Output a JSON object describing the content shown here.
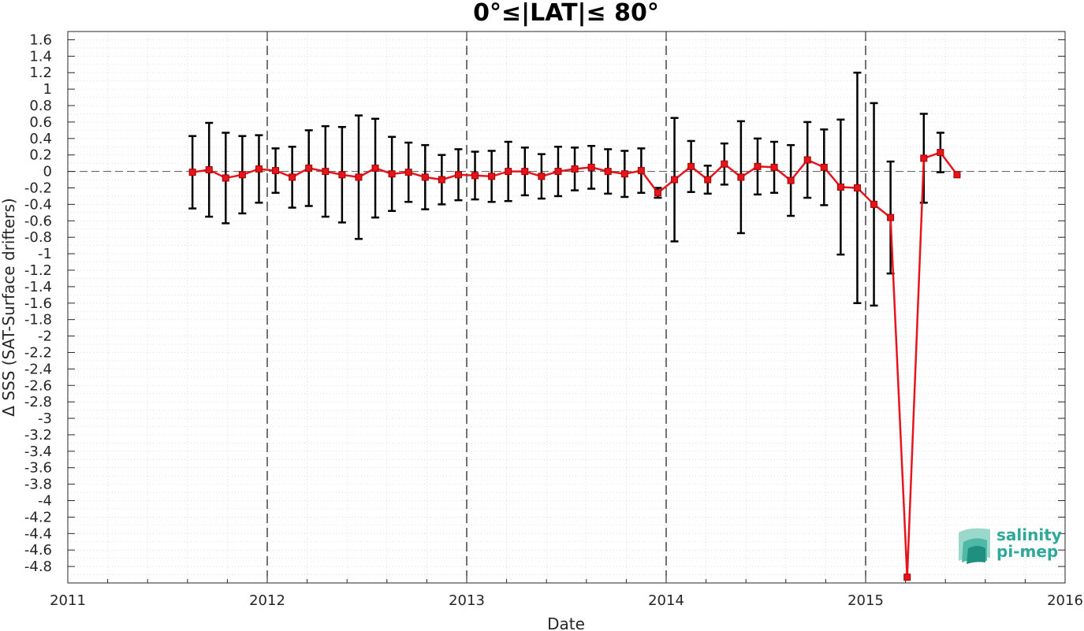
{
  "chart_data": {
    "type": "line",
    "title": "0°≤|LAT|≤ 80°",
    "xlabel": "Date",
    "ylabel": "Δ SSS (SAT-Surface drifters)",
    "xlim": [
      "2011-01-01",
      "2016-01-01"
    ],
    "ylim": [
      -5.0,
      1.7
    ],
    "x_ticks": [
      "2011",
      "2012",
      "2013",
      "2014",
      "2015",
      "2016"
    ],
    "y_ticks": [
      1.6,
      1.4,
      1.2,
      1,
      0.8,
      0.6,
      0.4,
      0.2,
      0,
      -0.2,
      -0.4,
      -0.6,
      -0.8,
      -1,
      -1.2,
      -1.4,
      -1.6,
      -1.8,
      -2,
      -2.2,
      -2.4,
      -2.6,
      -2.8,
      -3,
      -3.2,
      -3.4,
      -3.6,
      -3.8,
      -4,
      -4.2,
      -4.4,
      -4.6,
      -4.8
    ],
    "grid": "minor dotted",
    "reference_line": 0,
    "year_dividers": [
      "2012",
      "2013",
      "2014",
      "2015"
    ],
    "line_color": "#e8141c",
    "errorbar_color": "#000000",
    "series": [
      {
        "x": [
          "2011-08",
          "2011-09",
          "2011-10",
          "2011-11",
          "2011-12",
          "2012-01",
          "2012-02",
          "2012-03",
          "2012-04",
          "2012-05",
          "2012-06",
          "2012-07",
          "2012-08",
          "2012-09",
          "2012-10",
          "2012-11",
          "2012-12",
          "2013-01",
          "2013-02",
          "2013-03",
          "2013-04",
          "2013-05",
          "2013-06",
          "2013-07",
          "2013-08",
          "2013-09",
          "2013-10",
          "2013-11",
          "2013-12",
          "2014-01",
          "2014-02",
          "2014-03",
          "2014-04",
          "2014-05",
          "2014-06",
          "2014-07",
          "2014-08",
          "2014-09",
          "2014-10",
          "2014-11",
          "2014-12",
          "2015-01",
          "2015-02",
          "2015-03",
          "2015-04",
          "2015-05",
          "2015-06"
        ],
        "y": [
          -0.01,
          0.02,
          -0.08,
          -0.04,
          0.03,
          0.01,
          -0.07,
          0.04,
          0.0,
          -0.04,
          -0.07,
          0.04,
          -0.03,
          -0.01,
          -0.07,
          -0.1,
          -0.04,
          -0.05,
          -0.06,
          0.0,
          0.0,
          -0.06,
          0.0,
          0.03,
          0.05,
          0.0,
          -0.03,
          0.01,
          -0.26,
          -0.1,
          0.06,
          -0.1,
          0.09,
          -0.07,
          0.06,
          0.05,
          -0.11,
          0.14,
          0.05,
          -0.19,
          -0.2,
          -0.4,
          -0.56,
          -4.93,
          0.16,
          0.23,
          -0.04
        ],
        "err": [
          0.44,
          0.57,
          0.55,
          0.47,
          0.41,
          0.27,
          0.37,
          0.46,
          0.55,
          0.58,
          0.75,
          0.6,
          0.45,
          0.36,
          0.39,
          0.3,
          0.31,
          0.29,
          0.31,
          0.36,
          0.29,
          0.27,
          0.3,
          0.26,
          0.26,
          0.27,
          0.28,
          0.27,
          0.06,
          0.75,
          0.31,
          0.17,
          0.25,
          0.68,
          0.34,
          0.31,
          0.43,
          0.46,
          0.46,
          0.82,
          1.4,
          1.23,
          0.68,
          0.0,
          0.54,
          0.24,
          0.0
        ]
      }
    ]
  },
  "logo": {
    "line1": "salinity",
    "line2": "pi-mep"
  }
}
